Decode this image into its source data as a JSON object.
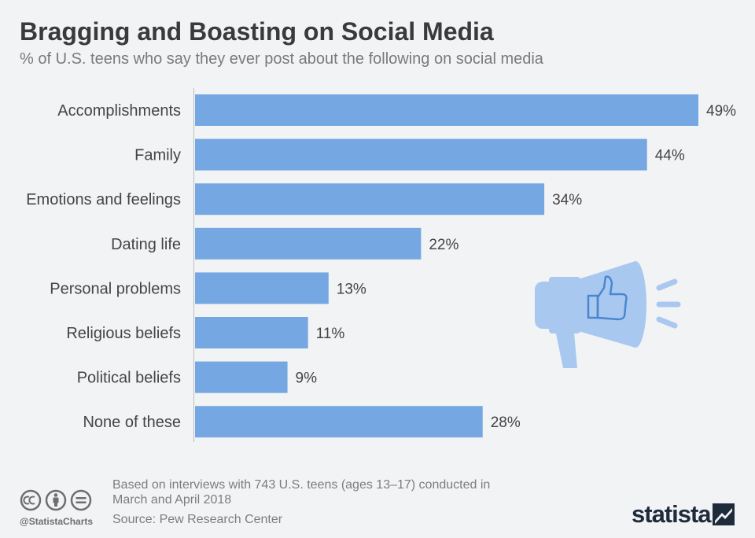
{
  "chart_data": {
    "type": "bar",
    "orientation": "horizontal",
    "title": "Bragging and Boasting on Social Media",
    "subtitle": "% of U.S. teens who say they ever post about the following on social media",
    "categories": [
      "Accomplishments",
      "Family",
      "Emotions and feelings",
      "Dating life",
      "Personal problems",
      "Religious beliefs",
      "Political beliefs",
      "None of these"
    ],
    "values": [
      49,
      44,
      34,
      22,
      13,
      11,
      9,
      28
    ],
    "value_labels": [
      "49%",
      "44%",
      "34%",
      "22%",
      "13%",
      "11%",
      "9%",
      "28%"
    ],
    "xlim": [
      0,
      49
    ],
    "grid": false,
    "bar_color": "#75a7e2"
  },
  "footer": {
    "note": "Based on interviews with 743 U.S. teens (ages 13–17) conducted in March and April 2018",
    "source": "Source: Pew Research Center",
    "handle": "@StatistaCharts",
    "brand": "statista"
  },
  "icons": {
    "megaphone": "megaphone-thumbs-up-icon",
    "license": [
      "cc-icon",
      "by-icon",
      "nd-icon"
    ],
    "logo": "statista-logo-icon"
  },
  "colors": {
    "background": "#f2f3f5",
    "bar": "#75a7e2",
    "illustration": "#a9c8f0",
    "brand": "#1d2b3a"
  }
}
